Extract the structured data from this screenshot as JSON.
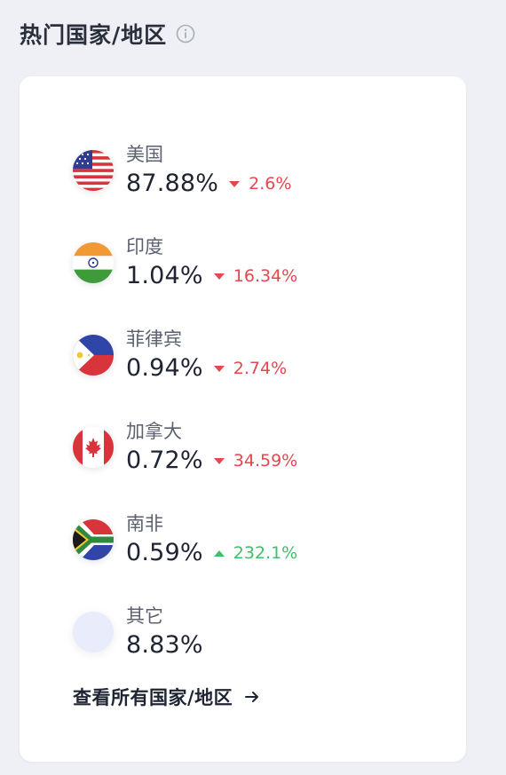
{
  "header": {
    "title": "热门国家/地区"
  },
  "countries": [
    {
      "name": "美国",
      "percent": "87.88%",
      "direction": "down",
      "change": "2.6%",
      "flag": "usa-flag-icon"
    },
    {
      "name": "印度",
      "percent": "1.04%",
      "direction": "down",
      "change": "16.34%",
      "flag": "india-flag-icon"
    },
    {
      "name": "菲律宾",
      "percent": "0.94%",
      "direction": "down",
      "change": "2.74%",
      "flag": "philippines-flag-icon"
    },
    {
      "name": "加拿大",
      "percent": "0.72%",
      "direction": "down",
      "change": "34.59%",
      "flag": "canada-flag-icon"
    },
    {
      "name": "南非",
      "percent": "0.59%",
      "direction": "up",
      "change": "232.1%",
      "flag": "south-africa-flag-icon"
    },
    {
      "name": "其它",
      "percent": "8.83%",
      "direction": "",
      "change": "",
      "flag": "other-placeholder-icon"
    }
  ],
  "footer": {
    "link_label": "查看所有国家/地区"
  },
  "colors": {
    "down": "#e2484f",
    "up": "#3fbf6b",
    "background": "#eef0f6",
    "card": "#ffffff"
  }
}
